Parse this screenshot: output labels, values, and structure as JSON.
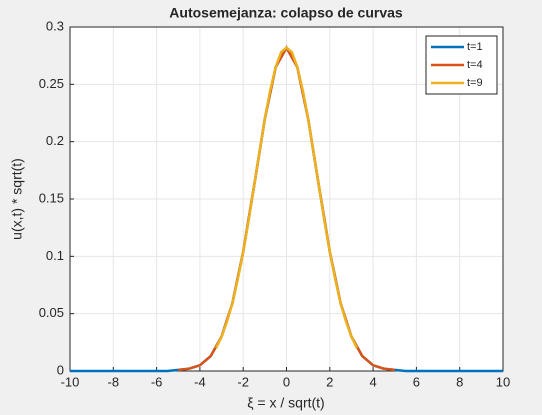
{
  "chart_data": {
    "type": "line",
    "title": "Autosemejanza: colapso de curvas",
    "xlabel": "ξ = x / sqrt(t)",
    "ylabel": "u(x,t) * sqrt(t)",
    "xlim": [
      -10,
      10
    ],
    "ylim": [
      0,
      0.3
    ],
    "xticks": [
      -10,
      -8,
      -6,
      -4,
      -2,
      0,
      2,
      4,
      6,
      8,
      10
    ],
    "yticks": [
      0,
      0.05,
      0.1,
      0.15,
      0.2,
      0.25,
      0.3
    ],
    "grid": true,
    "legend": "upper right",
    "series": [
      {
        "name": "t=1",
        "color": "#0072bd",
        "x": [
          -10,
          -9.5,
          -9,
          -8.5,
          -8,
          -7.5,
          -7,
          -6.5,
          -6,
          -5.5,
          -5,
          -4.5,
          -4,
          -3.5,
          -3,
          -2.5,
          -2,
          -1.5,
          -1,
          -0.5,
          0,
          0.5,
          1,
          1.5,
          2,
          2.5,
          3,
          3.5,
          4,
          4.5,
          5,
          5.5,
          6,
          6.5,
          7,
          7.5,
          8,
          8.5,
          9,
          9.5,
          10
        ],
        "values": [
          0,
          0,
          0,
          0,
          0,
          0,
          0,
          0,
          0,
          0,
          0.001,
          0.002,
          0.005,
          0.013,
          0.03,
          0.059,
          0.104,
          0.161,
          0.22,
          0.265,
          0.282,
          0.265,
          0.22,
          0.161,
          0.104,
          0.059,
          0.03,
          0.013,
          0.005,
          0.002,
          0.001,
          0,
          0,
          0,
          0,
          0,
          0,
          0,
          0,
          0,
          0
        ]
      },
      {
        "name": "t=4",
        "color": "#d95319",
        "x": [
          -5,
          -4.5,
          -4,
          -3.5,
          -3,
          -2.5,
          -2,
          -1.5,
          -1,
          -0.5,
          0,
          0.5,
          1,
          1.5,
          2,
          2.5,
          3,
          3.5,
          4,
          4.5,
          5
        ],
        "values": [
          0.001,
          0.002,
          0.005,
          0.013,
          0.03,
          0.059,
          0.104,
          0.161,
          0.22,
          0.265,
          0.282,
          0.265,
          0.22,
          0.161,
          0.104,
          0.059,
          0.03,
          0.013,
          0.005,
          0.002,
          0.001
        ]
      },
      {
        "name": "t=9",
        "color": "#edb120",
        "x": [
          -3.25,
          -3,
          -2.75,
          -2.5,
          -2.25,
          -2,
          -1.75,
          -1.5,
          -1.25,
          -1,
          -0.75,
          -0.5,
          -0.25,
          0,
          0.25,
          0.5,
          0.75,
          1,
          1.25,
          1.5,
          1.75,
          2,
          2.25,
          2.5,
          2.75,
          3,
          3.25
        ],
        "values": [
          0.02,
          0.03,
          0.043,
          0.059,
          0.08,
          0.104,
          0.131,
          0.161,
          0.191,
          0.22,
          0.245,
          0.265,
          0.278,
          0.282,
          0.278,
          0.265,
          0.245,
          0.22,
          0.191,
          0.161,
          0.131,
          0.104,
          0.08,
          0.059,
          0.043,
          0.03,
          0.02
        ]
      }
    ]
  }
}
